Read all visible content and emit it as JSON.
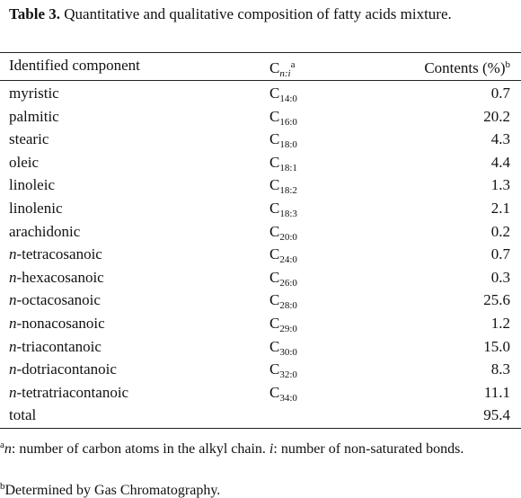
{
  "caption": {
    "label": "Table 3.",
    "text": "Quantitative and qualitative composition of fatty acids mixture."
  },
  "table": {
    "header": {
      "component": "Identified component",
      "formula": {
        "base": "C",
        "sub": "n:i",
        "sup": "a"
      },
      "contents": {
        "text": "Contents (%)",
        "sup": "b"
      }
    },
    "rows": [
      {
        "name": "myristic",
        "formula": {
          "base": "C",
          "sub": "14:0"
        },
        "contents": "0.7"
      },
      {
        "name": "palmitic",
        "formula": {
          "base": "C",
          "sub": "16:0"
        },
        "contents": "20.2"
      },
      {
        "name": "stearic",
        "formula": {
          "base": "C",
          "sub": "18:0"
        },
        "contents": "4.3"
      },
      {
        "name": "oleic",
        "formula": {
          "base": "C",
          "sub": "18:1"
        },
        "contents": "4.4"
      },
      {
        "name": "linoleic",
        "formula": {
          "base": "C",
          "sub": "18:2"
        },
        "contents": "1.3"
      },
      {
        "name": "linolenic",
        "formula": {
          "base": "C",
          "sub": "18:3"
        },
        "contents": "2.1"
      },
      {
        "name": "arachidonic",
        "formula": {
          "base": "C",
          "sub": "20:0"
        },
        "contents": "0.2"
      },
      {
        "prefix": "n",
        "name": "-tetracosanoic",
        "formula": {
          "base": "C",
          "sub": "24:0"
        },
        "contents": "0.7"
      },
      {
        "prefix": "n",
        "name": "-hexacosanoic",
        "formula": {
          "base": "C",
          "sub": "26:0"
        },
        "contents": "0.3"
      },
      {
        "prefix": "n",
        "name": "-octacosanoic",
        "formula": {
          "base": "C",
          "sub": "28:0"
        },
        "contents": "25.6"
      },
      {
        "prefix": "n",
        "name": "-nonacosanoic",
        "formula": {
          "base": "C",
          "sub": "29:0"
        },
        "contents": "1.2"
      },
      {
        "prefix": "n",
        "name": "-triacontanoic",
        "formula": {
          "base": "C",
          "sub": "30:0"
        },
        "contents": "15.0"
      },
      {
        "prefix": "n",
        "name": "-dotriacontanoic",
        "formula": {
          "base": "C",
          "sub": "32:0"
        },
        "contents": "8.3"
      },
      {
        "prefix": "n",
        "name": "-tetratriacontanoic",
        "formula": {
          "base": "C",
          "sub": "34:0"
        },
        "contents": "11.1"
      },
      {
        "name": "total",
        "contents": "95.4"
      }
    ]
  },
  "footnotes": [
    {
      "mark": "a",
      "parts": [
        "n",
        ": number of carbon atoms in the alkyl chain. ",
        "i",
        ": number of non-saturated bonds."
      ]
    },
    {
      "mark": "b",
      "text": "Determined by Gas Chromatography."
    }
  ]
}
